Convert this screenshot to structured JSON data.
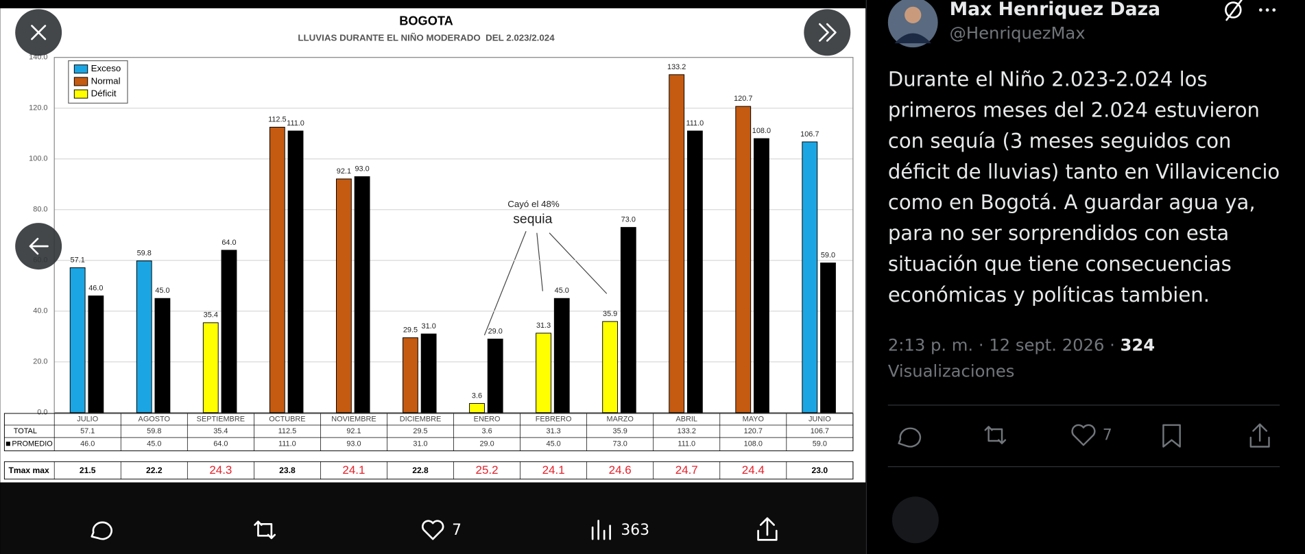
{
  "chart_data": {
    "type": "bar",
    "title": "BOGOTA",
    "subtitle": "LLUVIAS DURANTE EL NIÑO MODERADO  DEL 2.023/2.024",
    "categories": [
      "JULIO",
      "AGOSTO",
      "SEPTIEMBRE",
      "OCTUBRE",
      "NOVIEMBRE",
      "DICIEMBRE",
      "ENERO",
      "FEBRERO",
      "MARZO",
      "ABRIL",
      "MAYO",
      "JUNIO"
    ],
    "series": [
      {
        "name": "TOTAL",
        "values": [
          57.1,
          59.8,
          35.4,
          112.5,
          92.1,
          29.5,
          3.6,
          31.3,
          35.9,
          133.2,
          120.7,
          106.7
        ],
        "value_labels": [
          "57.1",
          "59.8",
          "35.4",
          "112.5",
          "92.1",
          "29.5",
          "3.6",
          "31.3",
          "35.9",
          "133.2",
          "120.7",
          "106.7"
        ],
        "colors": [
          "#1ba6e3",
          "#1ba6e3",
          "#ffff00",
          "#c55a11",
          "#c55a11",
          "#c55a11",
          "#ffff00",
          "#ffff00",
          "#ffff00",
          "#c55a11",
          "#c55a11",
          "#1ba6e3"
        ]
      },
      {
        "name": "PROMEDIO",
        "color": "#000000",
        "values": [
          46,
          45,
          64,
          111,
          93,
          31,
          29,
          45,
          73,
          111,
          108,
          59
        ],
        "value_labels": [
          "46.0",
          "45.0",
          "64.0",
          "111.0",
          "93.0",
          "31.0",
          "29.0",
          "45.0",
          "73.0",
          "111.0",
          "108.0",
          "59.0"
        ]
      }
    ],
    "legend": [
      {
        "name": "Exceso",
        "color": "#1ba6e3"
      },
      {
        "name": "Normal",
        "color": "#c55a11"
      },
      {
        "name": "Déficit",
        "color": "#ffff00"
      }
    ],
    "ylim": [
      0,
      140
    ],
    "yticks": [
      {
        "value": 0,
        "label": "0.0"
      },
      {
        "value": 20,
        "label": "20.0"
      },
      {
        "value": 40,
        "label": "40.0"
      },
      {
        "value": 60,
        "label": "60.0"
      },
      {
        "value": 80,
        "label": "80.0"
      },
      {
        "value": 100,
        "label": "100.0"
      },
      {
        "value": 120,
        "label": "120.0"
      },
      {
        "value": 140,
        "label": "140.0"
      }
    ],
    "grid": true,
    "annotations": [
      "Cayó el 48%",
      "sequia"
    ],
    "tmax": {
      "label": "Tmax max",
      "values": [
        21.5,
        22.2,
        24.3,
        23.8,
        24.1,
        22.8,
        25.2,
        24.1,
        24.6,
        24.7,
        24.4,
        23
      ],
      "value_labels": [
        "21.5",
        "22.2",
        "24.3",
        "23.8",
        "24.1",
        "22.8",
        "25.2",
        "24.1",
        "24.6",
        "24.7",
        "24.4",
        "23.0"
      ],
      "colors": [
        "#000000",
        "#000000",
        "#e8202a",
        "#000000",
        "#e8202a",
        "#000000",
        "#e8202a",
        "#e8202a",
        "#e8202a",
        "#e8202a",
        "#e8202a",
        "#000000"
      ]
    }
  },
  "media_bar": {
    "likes": 7,
    "views": 363
  },
  "tweet": {
    "author": "Max Henriquez Daza",
    "handle": "@HenriquezMax",
    "text": [
      "Durante el Niño 2.023-2.024 los",
      "primeros meses del 2.024 estuvieron",
      "con sequía (3 meses seguidos con",
      "déficit de lluvias) tanto en Villavicencio",
      "como en Bogotá. A guardar agua ya,",
      "para no ser sorprendidos con esta",
      "situación que tiene consecuencias",
      "económicas y políticas tambien."
    ],
    "time": "2:13 p. m. · 12 sept. 2026 ·",
    "views": 324,
    "views_label": "Visualizaciones",
    "likes": 7
  }
}
